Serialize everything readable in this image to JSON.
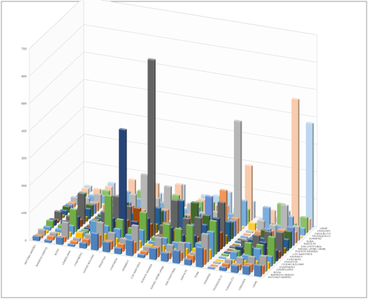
{
  "chart_data": {
    "type": "bar",
    "subtype": "3d-clustered-columns",
    "title": "",
    "xlabel": "",
    "ylabel": "",
    "ylim": [
      0,
      700
    ],
    "yticks": [
      0,
      100,
      200,
      300,
      400,
      500,
      600,
      700
    ],
    "grid": true,
    "legend": "none",
    "categories": [
      "ANTONIO NARIÑO",
      "BARRIOS UNIDOS",
      "BOSA",
      "CANDELARIA",
      "CHAPINERO",
      "CIUDAD BOLIVAR",
      "ENGATIVA",
      "FONTIBON",
      "KENNEDY",
      "LOS MARTIRES",
      "PUENTE ARANDA",
      "RAFAEL URIBE URIBE",
      "SAN CRISTOBAL",
      "SANTA FE",
      "SUBA",
      "SUMAPAZ",
      "TEUSAQUILLO",
      "TUNJUELITO",
      "USAQUEN",
      "USME"
    ],
    "series": [
      {
        "name": "ANTONIO NARIÑO",
        "color": "#4f81bd",
        "values": [
          15,
          8,
          25,
          6,
          18,
          60,
          35,
          20,
          55,
          10,
          40,
          30,
          45,
          20,
          70,
          3,
          12,
          25,
          30,
          40
        ]
      },
      {
        "name": "BARRIOS UNIDOS",
        "color": "#ed7d31",
        "values": [
          10,
          12,
          18,
          8,
          22,
          45,
          30,
          25,
          40,
          12,
          35,
          22,
          30,
          25,
          55,
          2,
          15,
          20,
          28,
          30
        ]
      },
      {
        "name": "BOSA",
        "color": "#a5a5a5",
        "values": [
          20,
          15,
          60,
          10,
          30,
          80,
          50,
          35,
          90,
          20,
          60,
          40,
          55,
          25,
          100,
          4,
          20,
          35,
          45,
          55
        ]
      },
      {
        "name": "CANDELARIA",
        "color": "#ffc000",
        "values": [
          8,
          6,
          15,
          20,
          12,
          30,
          20,
          15,
          25,
          18,
          22,
          16,
          24,
          30,
          35,
          2,
          10,
          14,
          20,
          22
        ]
      },
      {
        "name": "CHAPINERO",
        "color": "#5b9bd5",
        "values": [
          12,
          10,
          30,
          15,
          60,
          50,
          45,
          30,
          55,
          20,
          40,
          30,
          35,
          40,
          90,
          3,
          30,
          25,
          55,
          35
        ]
      },
      {
        "name": "CIUDAD BOLIVAR",
        "color": "#70ad47",
        "values": [
          25,
          15,
          80,
          12,
          40,
          150,
          70,
          45,
          110,
          25,
          80,
          70,
          90,
          35,
          120,
          5,
          25,
          60,
          60,
          95
        ]
      },
      {
        "name": "ENGATIVA",
        "color": "#264478",
        "values": [
          20,
          20,
          45,
          10,
          35,
          60,
          390,
          60,
          80,
          20,
          60,
          40,
          45,
          25,
          120,
          3,
          30,
          35,
          60,
          40
        ]
      },
      {
        "name": "FONTIBON",
        "color": "#9e480e",
        "values": [
          10,
          10,
          25,
          8,
          20,
          40,
          50,
          100,
          50,
          15,
          40,
          25,
          30,
          20,
          60,
          2,
          15,
          20,
          30,
          25
        ]
      },
      {
        "name": "KENNEDY",
        "color": "#636363",
        "values": [
          30,
          20,
          110,
          15,
          55,
          120,
          90,
          70,
          640,
          40,
          140,
          80,
          90,
          40,
          160,
          5,
          35,
          60,
          80,
          85
        ]
      },
      {
        "name": "LOS MARTIRES",
        "color": "#997300",
        "values": [
          8,
          8,
          15,
          12,
          15,
          25,
          20,
          15,
          30,
          40,
          30,
          18,
          20,
          30,
          30,
          2,
          12,
          15,
          20,
          18
        ]
      },
      {
        "name": "PUENTE ARANDA",
        "color": "#255e91",
        "values": [
          15,
          15,
          35,
          10,
          30,
          50,
          45,
          35,
          80,
          25,
          120,
          40,
          45,
          30,
          70,
          3,
          20,
          30,
          40,
          40
        ]
      },
      {
        "name": "RAFAEL URIBE URIBE",
        "color": "#43682b",
        "values": [
          20,
          12,
          40,
          10,
          25,
          70,
          35,
          25,
          60,
          20,
          55,
          110,
          70,
          30,
          60,
          3,
          15,
          50,
          30,
          60
        ]
      },
      {
        "name": "SAN CRISTOBAL",
        "color": "#698ed0",
        "values": [
          18,
          12,
          35,
          12,
          25,
          60,
          30,
          25,
          50,
          20,
          45,
          60,
          130,
          35,
          55,
          3,
          15,
          45,
          30,
          65
        ]
      },
      {
        "name": "SANTA FE",
        "color": "#f1975a",
        "values": [
          15,
          10,
          30,
          25,
          35,
          40,
          30,
          25,
          45,
          35,
          40,
          35,
          45,
          150,
          55,
          2,
          20,
          30,
          40,
          40
        ]
      },
      {
        "name": "SUBA",
        "color": "#b7b7b7",
        "values": [
          25,
          30,
          50,
          15,
          60,
          70,
          150,
          70,
          120,
          30,
          70,
          45,
          55,
          40,
          400,
          4,
          50,
          40,
          120,
          50
        ]
      },
      {
        "name": "SUMAPAZ",
        "color": "#ffcd33",
        "values": [
          2,
          1,
          3,
          1,
          2,
          5,
          3,
          2,
          4,
          1,
          3,
          2,
          3,
          2,
          4,
          25,
          2,
          2,
          3,
          3
        ]
      },
      {
        "name": "TEUSAQUILLO",
        "color": "#7cafdd",
        "values": [
          12,
          20,
          25,
          15,
          55,
          35,
          50,
          35,
          50,
          25,
          40,
          25,
          30,
          35,
          90,
          2,
          80,
          20,
          60,
          25
        ]
      },
      {
        "name": "TUNJUELITO",
        "color": "#8cc168",
        "values": [
          15,
          10,
          35,
          8,
          20,
          55,
          30,
          25,
          60,
          15,
          50,
          55,
          45,
          20,
          50,
          3,
          12,
          90,
          25,
          55
        ]
      },
      {
        "name": "USAQUEN",
        "color": "#f8cbad",
        "values": [
          20,
          25,
          40,
          15,
          80,
          50,
          80,
          50,
          90,
          25,
          50,
          35,
          40,
          35,
          200,
          3,
          50,
          30,
          470,
          40
        ]
      },
      {
        "name": "USME",
        "color": "#bdd7ee",
        "values": [
          20,
          12,
          45,
          10,
          25,
          90,
          35,
          25,
          80,
          15,
          55,
          60,
          80,
          25,
          60,
          4,
          15,
          45,
          30,
          380
        ]
      }
    ]
  }
}
